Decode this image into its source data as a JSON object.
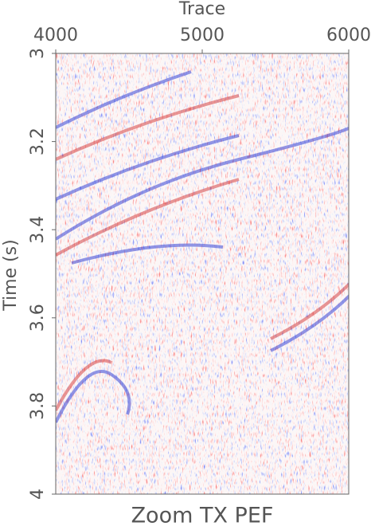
{
  "chart_data": {
    "type": "seismic-image",
    "title": "Zoom TX PEF",
    "x_label": "Trace",
    "y_label": "Time (s)",
    "xlim": [
      4000,
      6000
    ],
    "xticks": [
      4000,
      5000,
      6000
    ],
    "ylim": [
      3,
      4
    ],
    "yticks": [
      3,
      3.2,
      3.4,
      3.6,
      3.8,
      4
    ],
    "x_axis_position": "top",
    "y_reversed": true
  }
}
